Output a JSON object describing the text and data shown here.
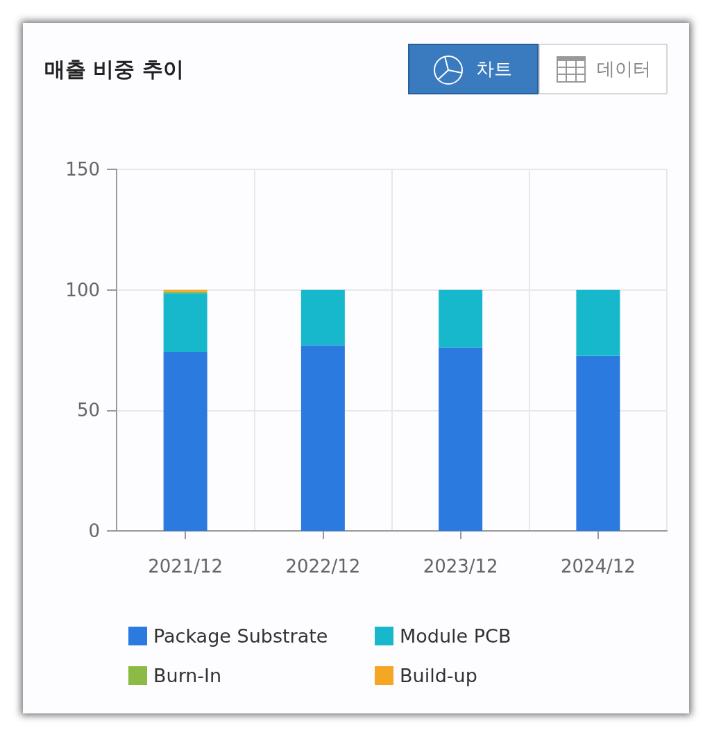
{
  "chart_data": {
    "type": "bar",
    "title": "매출 비중 추이",
    "annotations": [
      "차트",
      "데이터"
    ],
    "categories": [
      "2021/12",
      "2022/12",
      "2023/12",
      "2024/12"
    ],
    "series": [
      {
        "name": "Package Substrate",
        "color": "#2b7ae0",
        "values": [
          74.3,
          77.0,
          76.1,
          72.6
        ]
      },
      {
        "name": "Module PCB",
        "color": "#17b8cc",
        "values": [
          24.4,
          23.0,
          23.9,
          27.4
        ]
      },
      {
        "name": "Burn-In",
        "color": "#8bbb44",
        "values": [
          0.4,
          null,
          null,
          null
        ]
      },
      {
        "name": "Build-up",
        "color": "#f5a623",
        "values": [
          0.9,
          null,
          null,
          null
        ]
      }
    ],
    "stacked": true,
    "ylim": [
      0,
      150
    ],
    "yticks": [
      0,
      50,
      100,
      150
    ],
    "grid": true,
    "legend": "bottom"
  }
}
